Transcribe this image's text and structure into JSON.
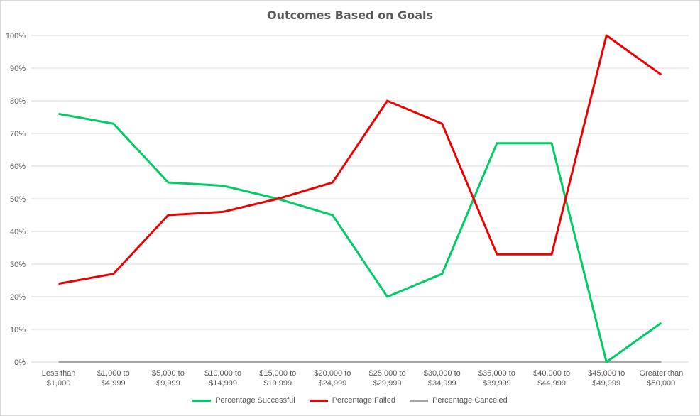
{
  "chart_data": {
    "type": "line",
    "title": "Outcomes Based on Goals",
    "xlabel": "",
    "ylabel": "",
    "ylim": [
      0,
      100
    ],
    "y_ticks": [
      "0%",
      "10%",
      "20%",
      "30%",
      "40%",
      "50%",
      "60%",
      "70%",
      "80%",
      "90%",
      "100%"
    ],
    "grid": true,
    "legend_position": "bottom",
    "categories": [
      [
        "Less than",
        "$1,000"
      ],
      [
        "$1,000 to",
        "$4,999"
      ],
      [
        "$5,000 to",
        "$9,999"
      ],
      [
        "$10,000 to",
        "$14,999"
      ],
      [
        "$15,000 to",
        "$19,999"
      ],
      [
        "$20,000 to",
        "$24,999"
      ],
      [
        "$25,000 to",
        "$29,999"
      ],
      [
        "$30,000 to",
        "$34,999"
      ],
      [
        "$35,000 to",
        "$39,999"
      ],
      [
        "$40,000 to",
        "$44,999"
      ],
      [
        "$45,000 to",
        "$49,999"
      ],
      [
        "Greater than",
        "$50,000"
      ]
    ],
    "series": [
      {
        "name": "Percentage Successful",
        "color": "#00cc66",
        "values": [
          76,
          73,
          55,
          54,
          50,
          45,
          20,
          27,
          67,
          67,
          0,
          12
        ]
      },
      {
        "name": "Percentage Failed",
        "color": "#ee0000",
        "values": [
          24,
          27,
          45,
          46,
          50,
          55,
          80,
          73,
          33,
          33,
          100,
          88
        ]
      },
      {
        "name": "Percentage Canceled",
        "color": "#a6a6a6",
        "values": [
          0,
          0,
          0,
          0,
          0,
          0,
          0,
          0,
          0,
          0,
          0,
          0
        ]
      }
    ]
  }
}
